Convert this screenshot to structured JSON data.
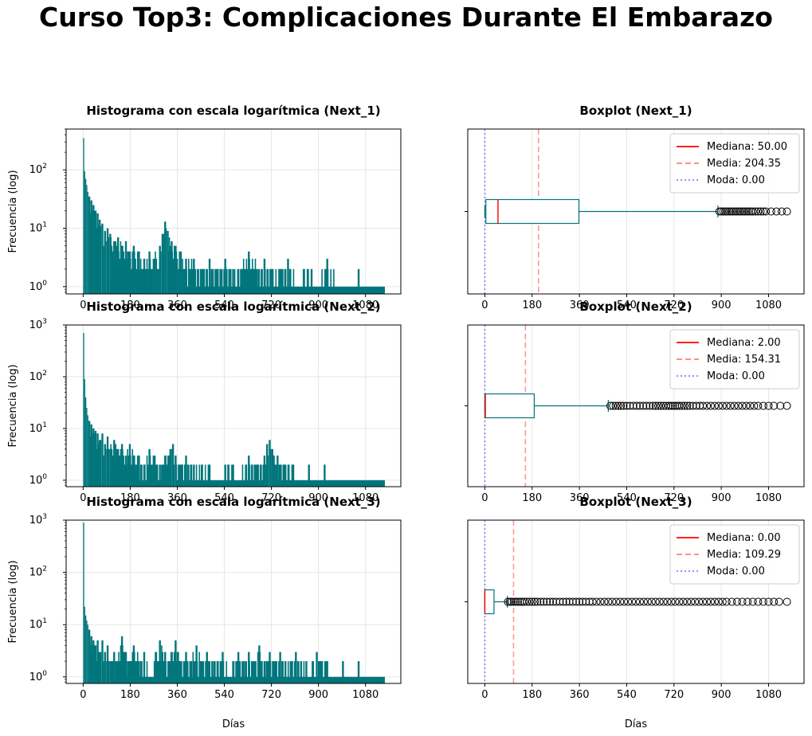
{
  "figure_title": "Curso Top3: Complicaciones Durante El Embarazo",
  "colors": {
    "bars": "#00767c",
    "box": "#00767c",
    "median": "#ff0000",
    "mean": "#ff7f7f",
    "mode": "#8080ff",
    "grid": "#e6e6e6"
  },
  "chart_data": [
    {
      "type": "bar",
      "title": "Histograma con escala logarítmica (Next_1)",
      "xlabel": "",
      "ylabel": "Frecuencia (log)",
      "yscale": "log",
      "xlim": [
        -65,
        1215
      ],
      "ylim": [
        0.75,
        500
      ],
      "xticks": [
        "0",
        "180",
        "360",
        "540",
        "720",
        "900",
        "1080"
      ],
      "yticks": [
        "10^0",
        "10^1",
        "10^2"
      ],
      "grid": true,
      "bins": [
        {
          "x": 0,
          "count": 350
        },
        {
          "x": 4,
          "count": 95
        },
        {
          "x": 8,
          "count": 70
        },
        {
          "x": 12,
          "count": 55
        },
        {
          "x": 16,
          "count": 42
        },
        {
          "x": 20,
          "count": 35
        },
        {
          "x": 28,
          "count": 30
        },
        {
          "x": 36,
          "count": 25
        },
        {
          "x": 44,
          "count": 20
        },
        {
          "x": 52,
          "count": 18
        },
        {
          "x": 60,
          "count": 14
        },
        {
          "x": 70,
          "count": 12
        },
        {
          "x": 80,
          "count": 9
        },
        {
          "x": 90,
          "count": 10
        },
        {
          "x": 100,
          "count": 8
        },
        {
          "x": 115,
          "count": 6
        },
        {
          "x": 130,
          "count": 7
        },
        {
          "x": 145,
          "count": 5
        },
        {
          "x": 160,
          "count": 6
        },
        {
          "x": 175,
          "count": 4
        },
        {
          "x": 190,
          "count": 5
        },
        {
          "x": 210,
          "count": 4
        },
        {
          "x": 230,
          "count": 3
        },
        {
          "x": 250,
          "count": 4
        },
        {
          "x": 270,
          "count": 3
        },
        {
          "x": 290,
          "count": 5
        },
        {
          "x": 300,
          "count": 8
        },
        {
          "x": 310,
          "count": 13
        },
        {
          "x": 320,
          "count": 9
        },
        {
          "x": 335,
          "count": 6
        },
        {
          "x": 350,
          "count": 5
        },
        {
          "x": 370,
          "count": 4
        },
        {
          "x": 390,
          "count": 3
        },
        {
          "x": 420,
          "count": 3
        },
        {
          "x": 450,
          "count": 2
        },
        {
          "x": 480,
          "count": 3
        },
        {
          "x": 510,
          "count": 2
        },
        {
          "x": 540,
          "count": 3
        },
        {
          "x": 570,
          "count": 2
        },
        {
          "x": 600,
          "count": 2
        },
        {
          "x": 630,
          "count": 4
        },
        {
          "x": 660,
          "count": 2
        },
        {
          "x": 690,
          "count": 3
        },
        {
          "x": 720,
          "count": 2
        },
        {
          "x": 750,
          "count": 2
        },
        {
          "x": 780,
          "count": 3
        },
        {
          "x": 810,
          "count": 1
        },
        {
          "x": 840,
          "count": 2
        },
        {
          "x": 870,
          "count": 2
        },
        {
          "x": 900,
          "count": 1
        },
        {
          "x": 930,
          "count": 3
        },
        {
          "x": 960,
          "count": 1
        },
        {
          "x": 990,
          "count": 1
        },
        {
          "x": 1020,
          "count": 1
        },
        {
          "x": 1050,
          "count": 2
        },
        {
          "x": 1080,
          "count": 1
        },
        {
          "x": 1100,
          "count": 1
        },
        {
          "x": 1120,
          "count": 1
        },
        {
          "x": 1150,
          "count": 1
        }
      ]
    },
    {
      "type": "boxplot",
      "title": "Boxplot (Next_1)",
      "xlabel": "",
      "xlim": [
        -65,
        1215
      ],
      "xticks": [
        "0",
        "180",
        "360",
        "540",
        "720",
        "900",
        "1080"
      ],
      "grid": true,
      "whisker_low": 0,
      "q1": 4,
      "median": 50,
      "q3": 358,
      "whisker_high": 887,
      "mean": 204.35,
      "mode": 0,
      "outliers": [
        893,
        900,
        908,
        915,
        922,
        930,
        938,
        945,
        953,
        960,
        968,
        975,
        983,
        990,
        998,
        1005,
        1013,
        1020,
        1030,
        1040,
        1050,
        1060,
        1070,
        1090,
        1110,
        1130,
        1150
      ],
      "legend": {
        "position": "top-right",
        "entries": [
          "Mediana: 50.00",
          "Media: 204.35",
          "Moda: 0.00"
        ]
      }
    },
    {
      "type": "bar",
      "title": "Histograma con escala logarítmica (Next_2)",
      "xlabel": "",
      "ylabel": "Frecuencia (log)",
      "yscale": "log",
      "xlim": [
        -65,
        1215
      ],
      "ylim": [
        0.75,
        1000
      ],
      "xticks": [
        "0",
        "180",
        "360",
        "540",
        "720",
        "900",
        "1080"
      ],
      "yticks": [
        "10^0",
        "10^1",
        "10^2",
        "10^3"
      ],
      "grid": true,
      "bins": [
        {
          "x": 0,
          "count": 700
        },
        {
          "x": 4,
          "count": 90
        },
        {
          "x": 8,
          "count": 40
        },
        {
          "x": 12,
          "count": 25
        },
        {
          "x": 16,
          "count": 18
        },
        {
          "x": 20,
          "count": 14
        },
        {
          "x": 28,
          "count": 12
        },
        {
          "x": 36,
          "count": 10
        },
        {
          "x": 44,
          "count": 9
        },
        {
          "x": 52,
          "count": 8
        },
        {
          "x": 60,
          "count": 6
        },
        {
          "x": 70,
          "count": 8
        },
        {
          "x": 80,
          "count": 5
        },
        {
          "x": 90,
          "count": 7
        },
        {
          "x": 100,
          "count": 4
        },
        {
          "x": 115,
          "count": 6
        },
        {
          "x": 130,
          "count": 4
        },
        {
          "x": 145,
          "count": 5
        },
        {
          "x": 160,
          "count": 3
        },
        {
          "x": 175,
          "count": 5
        },
        {
          "x": 190,
          "count": 3
        },
        {
          "x": 210,
          "count": 3
        },
        {
          "x": 230,
          "count": 2
        },
        {
          "x": 250,
          "count": 4
        },
        {
          "x": 270,
          "count": 3
        },
        {
          "x": 290,
          "count": 2
        },
        {
          "x": 310,
          "count": 3
        },
        {
          "x": 330,
          "count": 4
        },
        {
          "x": 340,
          "count": 5
        },
        {
          "x": 350,
          "count": 3
        },
        {
          "x": 370,
          "count": 2
        },
        {
          "x": 390,
          "count": 3
        },
        {
          "x": 420,
          "count": 2
        },
        {
          "x": 450,
          "count": 2
        },
        {
          "x": 480,
          "count": 2
        },
        {
          "x": 510,
          "count": 1
        },
        {
          "x": 540,
          "count": 2
        },
        {
          "x": 570,
          "count": 2
        },
        {
          "x": 600,
          "count": 1
        },
        {
          "x": 630,
          "count": 3
        },
        {
          "x": 660,
          "count": 2
        },
        {
          "x": 690,
          "count": 3
        },
        {
          "x": 700,
          "count": 5
        },
        {
          "x": 710,
          "count": 6
        },
        {
          "x": 720,
          "count": 4
        },
        {
          "x": 740,
          "count": 3
        },
        {
          "x": 770,
          "count": 2
        },
        {
          "x": 800,
          "count": 2
        },
        {
          "x": 830,
          "count": 1
        },
        {
          "x": 860,
          "count": 2
        },
        {
          "x": 890,
          "count": 1
        },
        {
          "x": 920,
          "count": 2
        },
        {
          "x": 950,
          "count": 1
        },
        {
          "x": 980,
          "count": 1
        },
        {
          "x": 1010,
          "count": 1
        },
        {
          "x": 1040,
          "count": 1
        },
        {
          "x": 1070,
          "count": 1
        },
        {
          "x": 1100,
          "count": 1
        },
        {
          "x": 1150,
          "count": 1
        }
      ]
    },
    {
      "type": "boxplot",
      "title": "Boxplot (Next_2)",
      "xlabel": "",
      "xlim": [
        -65,
        1215
      ],
      "xticks": [
        "0",
        "180",
        "360",
        "540",
        "720",
        "900",
        "1080"
      ],
      "grid": true,
      "whisker_low": 0,
      "q1": 0,
      "median": 2,
      "q3": 188,
      "whisker_high": 470,
      "mean": 154.31,
      "mode": 0,
      "outliers": [
        478,
        488,
        498,
        508,
        518,
        528,
        540,
        552,
        565,
        578,
        590,
        603,
        615,
        628,
        640,
        650,
        660,
        670,
        680,
        690,
        700,
        708,
        716,
        724,
        732,
        740,
        750,
        760,
        770,
        780,
        792,
        805,
        818,
        830,
        845,
        860,
        875,
        890,
        905,
        920,
        935,
        950,
        965,
        980,
        995,
        1010,
        1025,
        1040,
        1060,
        1080,
        1100,
        1125,
        1150
      ],
      "legend": {
        "position": "top-right",
        "entries": [
          "Mediana: 2.00",
          "Media: 154.31",
          "Moda: 0.00"
        ]
      }
    },
    {
      "type": "bar",
      "title": "Histograma con escala logarítmica (Next_3)",
      "xlabel": "Días",
      "ylabel": "Frecuencia (log)",
      "yscale": "log",
      "xlim": [
        -65,
        1215
      ],
      "ylim": [
        0.75,
        1000
      ],
      "xticks": [
        "0",
        "180",
        "360",
        "540",
        "720",
        "900",
        "1080"
      ],
      "yticks": [
        "10^0",
        "10^1",
        "10^2",
        "10^3"
      ],
      "grid": true,
      "bins": [
        {
          "x": 0,
          "count": 900
        },
        {
          "x": 4,
          "count": 22
        },
        {
          "x": 8,
          "count": 15
        },
        {
          "x": 12,
          "count": 12
        },
        {
          "x": 16,
          "count": 10
        },
        {
          "x": 20,
          "count": 8
        },
        {
          "x": 28,
          "count": 6
        },
        {
          "x": 36,
          "count": 5
        },
        {
          "x": 44,
          "count": 4
        },
        {
          "x": 52,
          "count": 5
        },
        {
          "x": 60,
          "count": 3
        },
        {
          "x": 70,
          "count": 5
        },
        {
          "x": 80,
          "count": 3
        },
        {
          "x": 90,
          "count": 4
        },
        {
          "x": 100,
          "count": 2
        },
        {
          "x": 115,
          "count": 3
        },
        {
          "x": 130,
          "count": 2
        },
        {
          "x": 145,
          "count": 6
        },
        {
          "x": 160,
          "count": 3
        },
        {
          "x": 175,
          "count": 2
        },
        {
          "x": 190,
          "count": 4
        },
        {
          "x": 210,
          "count": 2
        },
        {
          "x": 230,
          "count": 3
        },
        {
          "x": 250,
          "count": 1
        },
        {
          "x": 270,
          "count": 2
        },
        {
          "x": 290,
          "count": 5
        },
        {
          "x": 310,
          "count": 3
        },
        {
          "x": 330,
          "count": 2
        },
        {
          "x": 350,
          "count": 5
        },
        {
          "x": 370,
          "count": 2
        },
        {
          "x": 390,
          "count": 3
        },
        {
          "x": 410,
          "count": 2
        },
        {
          "x": 430,
          "count": 4
        },
        {
          "x": 450,
          "count": 2
        },
        {
          "x": 470,
          "count": 3
        },
        {
          "x": 490,
          "count": 2
        },
        {
          "x": 510,
          "count": 2
        },
        {
          "x": 530,
          "count": 3
        },
        {
          "x": 550,
          "count": 1
        },
        {
          "x": 570,
          "count": 2
        },
        {
          "x": 590,
          "count": 3
        },
        {
          "x": 610,
          "count": 2
        },
        {
          "x": 630,
          "count": 3
        },
        {
          "x": 650,
          "count": 2
        },
        {
          "x": 670,
          "count": 4
        },
        {
          "x": 690,
          "count": 2
        },
        {
          "x": 710,
          "count": 3
        },
        {
          "x": 730,
          "count": 2
        },
        {
          "x": 750,
          "count": 3
        },
        {
          "x": 770,
          "count": 2
        },
        {
          "x": 790,
          "count": 2
        },
        {
          "x": 810,
          "count": 3
        },
        {
          "x": 830,
          "count": 2
        },
        {
          "x": 850,
          "count": 2
        },
        {
          "x": 870,
          "count": 1
        },
        {
          "x": 890,
          "count": 3
        },
        {
          "x": 910,
          "count": 2
        },
        {
          "x": 930,
          "count": 2
        },
        {
          "x": 960,
          "count": 1
        },
        {
          "x": 990,
          "count": 2
        },
        {
          "x": 1020,
          "count": 1
        },
        {
          "x": 1050,
          "count": 2
        },
        {
          "x": 1080,
          "count": 1
        },
        {
          "x": 1110,
          "count": 1
        },
        {
          "x": 1150,
          "count": 1
        }
      ]
    },
    {
      "type": "boxplot",
      "title": "Boxplot (Next_3)",
      "xlabel": "Días",
      "xlim": [
        -65,
        1215
      ],
      "xticks": [
        "0",
        "180",
        "360",
        "540",
        "720",
        "900",
        "1080"
      ],
      "grid": true,
      "whisker_low": 0,
      "q1": 0,
      "median": 0,
      "q3": 35,
      "whisker_high": 86,
      "mean": 109.29,
      "mode": 0,
      "outliers": [
        88,
        95,
        102,
        110,
        118,
        126,
        134,
        142,
        150,
        160,
        170,
        180,
        190,
        200,
        212,
        224,
        236,
        248,
        260,
        272,
        285,
        298,
        310,
        322,
        335,
        348,
        360,
        372,
        385,
        398,
        410,
        425,
        440,
        455,
        470,
        485,
        500,
        515,
        530,
        545,
        560,
        575,
        590,
        605,
        620,
        635,
        650,
        665,
        680,
        695,
        710,
        725,
        740,
        755,
        770,
        785,
        800,
        815,
        830,
        845,
        860,
        875,
        890,
        905,
        920,
        940,
        960,
        980,
        1000,
        1020,
        1040,
        1060,
        1080,
        1100,
        1120,
        1150
      ],
      "legend": {
        "position": "top-right",
        "entries": [
          "Mediana: 0.00",
          "Media: 109.29",
          "Moda: 0.00"
        ]
      }
    }
  ]
}
